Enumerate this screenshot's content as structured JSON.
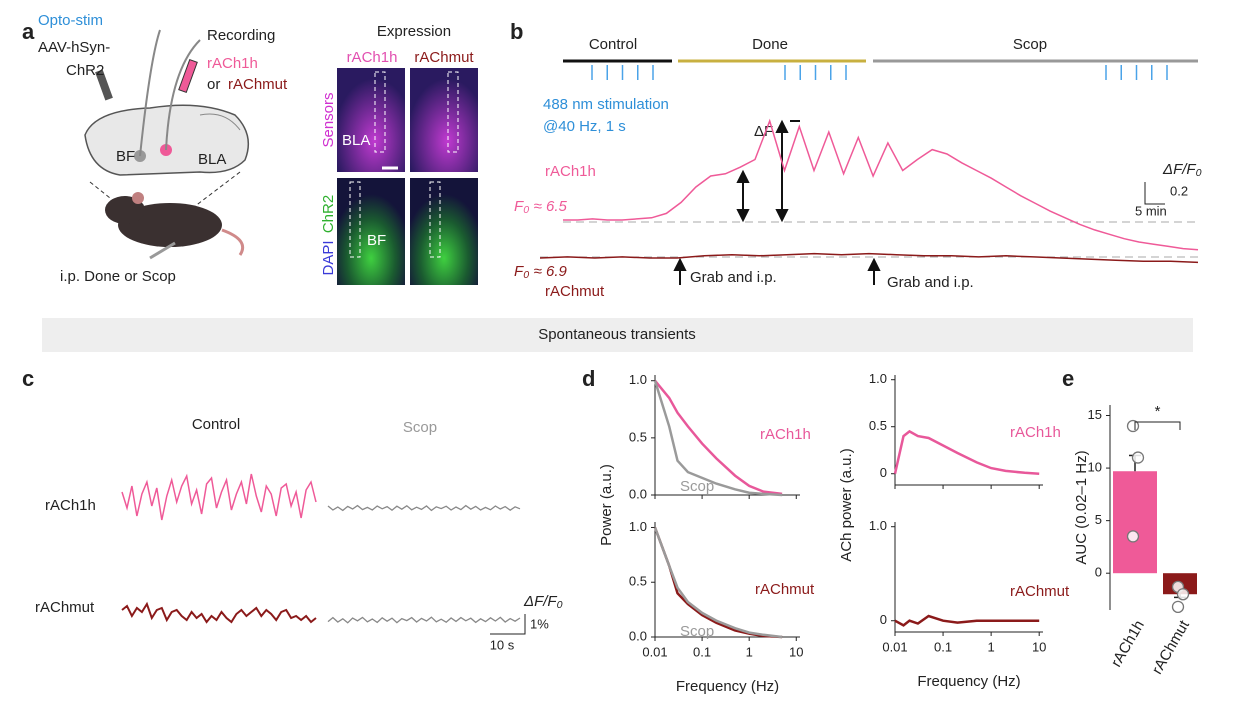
{
  "panel_labels": [
    "a",
    "b",
    "c",
    "d",
    "e"
  ],
  "a": {
    "opto_stim": "Opto-stim",
    "virus_line1": "AAV-hSyn-",
    "virus_line2": "ChR2",
    "recording": "Recording",
    "sensor1": "rACh1h",
    "or": "or",
    "sensor2": "rAChmut",
    "bf": "BF",
    "bla": "BLA",
    "injection": "i.p. Done or Scop",
    "expression": {
      "title": "Expression",
      "col1": "rACh1h",
      "col2": "rAChmut",
      "row1": "Sensors",
      "row2_dapi": "DAPI",
      "row2_chr2": "ChR2",
      "bla": "BLA",
      "bf": "BF"
    }
  },
  "b": {
    "phases": [
      "Control",
      "Done",
      "Scop"
    ],
    "stim_line1": "488 nm stimulation",
    "stim_line2": "@40 Hz, 1 s",
    "delta_f": "ΔF",
    "sensor1": "rACh1h",
    "f0_1": "F₀ ≈ 6.5",
    "sensor2": "rAChmut",
    "f0_2": "F₀ ≈ 6.9",
    "grab": [
      "Grab and i.p.",
      "Grab and i.p."
    ],
    "scale_label": "ΔF/F₀",
    "scale_y": "0.2",
    "scale_x": "5 min",
    "rach1h_trace": [
      0,
      0,
      0.01,
      0,
      0,
      0.01,
      0.02,
      0.06,
      0.16,
      0.3,
      0.4,
      0.42,
      0.48,
      0.55,
      0.9,
      0.45,
      0.85,
      0.45,
      0.8,
      0.42,
      0.75,
      0.4,
      0.7,
      0.45,
      0.55,
      0.64,
      0.6,
      0.52,
      0.45,
      0.38,
      0.3,
      0.22,
      0.15,
      0.08,
      0.02,
      -0.04,
      -0.09,
      -0.13,
      -0.17,
      -0.2,
      -0.22,
      -0.24,
      -0.26,
      -0.27
    ],
    "rachmut_trace": [
      0,
      0.01,
      0,
      0.01,
      0,
      0,
      0.02,
      0.03,
      0.02,
      0.03,
      0.04,
      0.03,
      0.04,
      0.03,
      0.02,
      0.02,
      0.01,
      0.02,
      0.01,
      0,
      -0.01,
      -0.02,
      -0.03,
      -0.03,
      -0.04
    ]
  },
  "banner": "Spontaneous transients",
  "c": {
    "control": "Control",
    "scop": "Scop",
    "row1": "rACh1h",
    "row2": "rAChmut",
    "scale_label": "ΔF/F₀",
    "scale_y": "1%",
    "scale_x": "10 s",
    "rach1h_control": [
      0.3,
      -0.5,
      0.6,
      -0.9,
      0.2,
      0.8,
      -0.4,
      0.5,
      -1.1,
      0.1,
      0.9,
      -0.2,
      0.6,
      1.1,
      -0.3,
      0.4,
      -0.8,
      0.7,
      1.0,
      -0.5,
      0.3,
      0.9,
      -0.6,
      0.2,
      0.8,
      -0.3,
      1.2,
      0.1,
      -0.7,
      0.6,
      0.2,
      -0.9,
      0.5,
      0.7,
      -0.4,
      0.3,
      -1.0,
      0.4,
      0.8,
      -0.2
    ],
    "rach1h_scop": [
      0.1,
      -0.1,
      0.05,
      -0.12,
      0.08,
      -0.05,
      0.12,
      -0.08,
      0.03,
      -0.1,
      0.1,
      -0.04,
      0.07,
      -0.11,
      0.09,
      -0.06,
      0.11,
      -0.09,
      0.04,
      -0.07,
      0.1,
      -0.12,
      0.06,
      -0.03,
      0.09,
      -0.1,
      0.05,
      -0.08,
      0.12,
      -0.06,
      0.08,
      -0.1,
      0.03,
      -0.09,
      0.1,
      -0.05,
      0.07,
      -0.11,
      0.06,
      -0.04
    ],
    "rachmut_control": [
      0.2,
      0.4,
      -0.1,
      0.3,
      0.1,
      0.5,
      -0.2,
      0.2,
      0.3,
      -0.3,
      0.1,
      0.2,
      -0.1,
      -0.3,
      0.1,
      -0.2,
      0,
      -0.4,
      -0.1,
      -0.3,
      0.1,
      -0.2,
      -0.4,
      0,
      0.2,
      -0.1,
      0.1,
      0.3,
      -0.1,
      0.2,
      0,
      -0.3,
      0.1,
      0.2,
      -0.2,
      -0.1,
      -0.3,
      -0.1,
      -0.4,
      -0.2
    ],
    "rachmut_scop": [
      -0.08,
      0.12,
      -0.1,
      0.06,
      -0.14,
      0.1,
      -0.04,
      0.13,
      -0.09,
      0.05,
      -0.12,
      0.11,
      -0.06,
      0.09,
      -0.13,
      0.07,
      -0.03,
      0.12,
      -0.1,
      0.08,
      -0.05,
      0.14,
      -0.09,
      0.04,
      -0.11,
      0.1,
      -0.07,
      0.12,
      -0.04,
      0.09,
      -0.12,
      0.06,
      -0.08,
      0.11,
      -0.05,
      0.13,
      -0.1,
      0.07,
      -0.06,
      0.1
    ]
  },
  "chart_data": [
    {
      "type": "line",
      "ylabel": "Power (a.u.)",
      "log_x": true,
      "xlim": [
        0.01,
        12
      ],
      "ylim": [
        0,
        1.05
      ],
      "yticks": [
        {
          "value": 0,
          "label": "0.0"
        },
        {
          "value": 0.5,
          "label": "0.5"
        },
        {
          "value": 1,
          "label": "1.0"
        }
      ],
      "x": [
        0.01,
        0.02,
        0.03,
        0.05,
        0.1,
        0.2,
        0.5,
        1,
        2,
        5
      ],
      "series": [
        {
          "name": "rACh1h",
          "color": "#e8589a",
          "values": [
            1,
            0.85,
            0.72,
            0.6,
            0.45,
            0.32,
            0.17,
            0.08,
            0.03,
            0.01
          ]
        },
        {
          "name": "Scop",
          "color": "#9a9a9a",
          "values": [
            1,
            0.6,
            0.3,
            0.2,
            0.15,
            0.1,
            0.05,
            0.02,
            0.01,
            0
          ]
        }
      ]
    },
    {
      "type": "line",
      "xlabel": "Frequency (Hz)",
      "log_x": true,
      "xlim": [
        0.01,
        12
      ],
      "ylim": [
        0,
        1.05
      ],
      "xticks": [
        0.01,
        0.1,
        1,
        10
      ],
      "yticks": [
        {
          "value": 0,
          "label": "0.0"
        },
        {
          "value": 0.5,
          "label": "0.5"
        },
        {
          "value": 1,
          "label": "1.0"
        }
      ],
      "x": [
        0.01,
        0.02,
        0.03,
        0.05,
        0.1,
        0.2,
        0.5,
        1,
        2,
        5
      ],
      "series": [
        {
          "name": "rAChmut",
          "color": "#8b1a1a",
          "values": [
            1,
            0.65,
            0.4,
            0.3,
            0.2,
            0.13,
            0.06,
            0.03,
            0.01,
            0
          ]
        },
        {
          "name": "Scop",
          "color": "#9a9a9a",
          "values": [
            1,
            0.65,
            0.45,
            0.32,
            0.22,
            0.15,
            0.08,
            0.04,
            0.02,
            0
          ]
        }
      ]
    },
    {
      "type": "line",
      "ylabel": "ACh power (a.u.)",
      "log_x": true,
      "xlim": [
        0.01,
        12
      ],
      "ylim": [
        -0.12,
        1.05
      ],
      "yticks": [
        0,
        0.5,
        {
          "value": 1,
          "label": "1.0"
        }
      ],
      "x": [
        0.01,
        0.015,
        0.02,
        0.03,
        0.05,
        0.1,
        0.2,
        0.5,
        1,
        2,
        5,
        10
      ],
      "series": [
        {
          "name": "rACh1h",
          "color": "#e8589a",
          "values": [
            0,
            0.4,
            0.45,
            0.4,
            0.38,
            0.3,
            0.22,
            0.12,
            0.06,
            0.03,
            0.01,
            0
          ]
        }
      ]
    },
    {
      "type": "line",
      "xlabel": "Frequency (Hz)",
      "log_x": true,
      "xlim": [
        0.01,
        12
      ],
      "ylim": [
        -0.12,
        1.05
      ],
      "xticks": [
        0.01,
        0.1,
        1,
        10
      ],
      "yticks": [
        0,
        {
          "value": 1,
          "label": "1.0"
        }
      ],
      "x": [
        0.01,
        0.015,
        0.02,
        0.03,
        0.05,
        0.1,
        0.2,
        0.5,
        1,
        2,
        5,
        10
      ],
      "series": [
        {
          "name": "rAChmut",
          "color": "#8b1a1a",
          "values": [
            0,
            -0.05,
            0,
            -0.03,
            0.05,
            0,
            -0.02,
            0,
            0,
            0,
            0,
            0
          ]
        }
      ]
    },
    {
      "type": "bar",
      "ylabel": "AUC (0.02–1 Hz)",
      "categories": [
        "rACh1h",
        "rAChmut"
      ],
      "values": [
        9.7,
        -2
      ],
      "errors": [
        1.5,
        0.3
      ],
      "colors": [
        "#ef5a98",
        "#8b1a1a"
      ],
      "points": [
        [
          14,
          11,
          3.5
        ],
        [
          -1.3,
          -2,
          -3.2
        ]
      ],
      "significance": "*",
      "ylim": [
        -3.5,
        16
      ],
      "yticks": [
        15,
        10,
        5,
        0
      ]
    }
  ]
}
